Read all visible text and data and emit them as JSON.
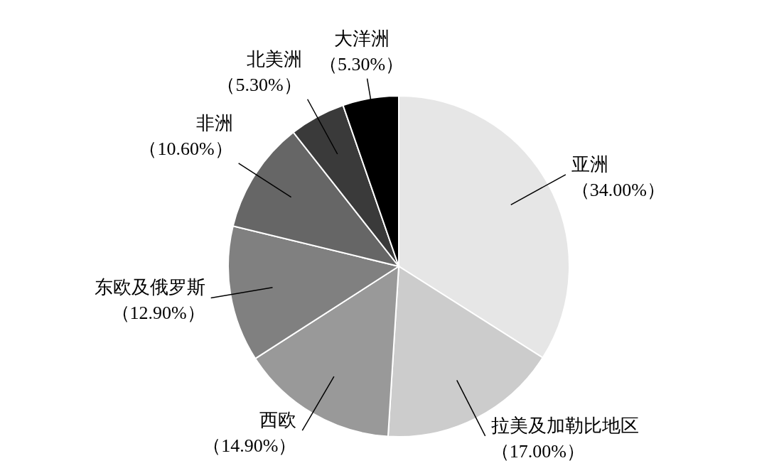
{
  "chart_data": {
    "type": "pie",
    "categories": [
      "亚洲",
      "拉美及加勒比地区",
      "西欧",
      "东欧及俄罗斯",
      "非洲",
      "北美洲",
      "大洋洲"
    ],
    "values": [
      34.0,
      17.0,
      14.9,
      12.9,
      10.6,
      5.3,
      5.3
    ],
    "colors": [
      "#e6e6e6",
      "#cccccc",
      "#999999",
      "#808080",
      "#666666",
      "#3a3a3a",
      "#000000"
    ],
    "value_labels": [
      "（34.00%）",
      "（17.00%）",
      "（14.90%）",
      "（12.90%）",
      "（10.60%）",
      "（5.30%）",
      "（5.30%）"
    ],
    "legend": false
  }
}
